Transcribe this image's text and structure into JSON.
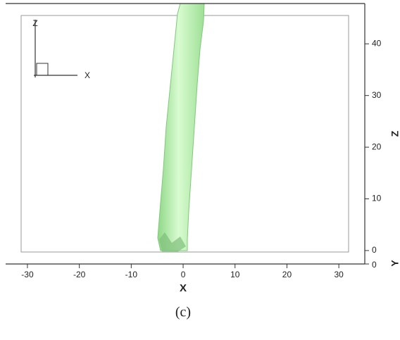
{
  "chart_data": {
    "type": "isosurface",
    "xlabel": "X",
    "ylabel": "Z",
    "y2label": "Y",
    "caption": "(c)",
    "triad_labels": [
      "Z",
      "X"
    ],
    "xlim": [
      -34.2,
      35
    ],
    "xticks": [
      -30,
      -20,
      -10,
      0,
      10,
      20,
      30
    ],
    "ylim": [
      -2.6,
      47.8
    ],
    "yticks": [
      0,
      10,
      20,
      30,
      40
    ],
    "y2lim": [
      0,
      50
    ],
    "y2ticks": [
      0
    ],
    "color": "#b5eeaa"
  }
}
